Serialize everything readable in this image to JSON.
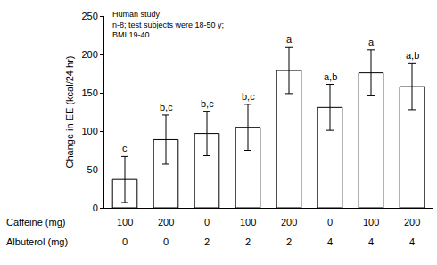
{
  "chart_data": {
    "type": "bar",
    "y_label": "Change in EE (kcal/24 hr)",
    "annotation": [
      "Human study",
      "n-8; test subjects were 18-50 y;",
      "BMI 19-40."
    ],
    "x_rows": [
      {
        "label": "Caffeine (mg)",
        "values": [
          100,
          200,
          0,
          100,
          200,
          0,
          100,
          200
        ]
      },
      {
        "label": "Albuterol (mg)",
        "values": [
          0,
          0,
          2,
          2,
          2,
          4,
          4,
          4
        ]
      }
    ],
    "values": [
      37,
      89,
      97,
      105,
      179,
      131,
      176,
      158
    ],
    "errors": [
      30,
      32,
      29,
      30,
      30,
      30,
      30,
      30
    ],
    "letters": [
      "c",
      "b,c",
      "b,c",
      "b,c",
      "a",
      "a,b",
      "a",
      "a,b"
    ],
    "color": "#ffffff",
    "ylim": [
      0,
      250
    ],
    "yticks": [
      0,
      50,
      100,
      150,
      200,
      250
    ],
    "grid": false,
    "tick_labels": "y"
  }
}
